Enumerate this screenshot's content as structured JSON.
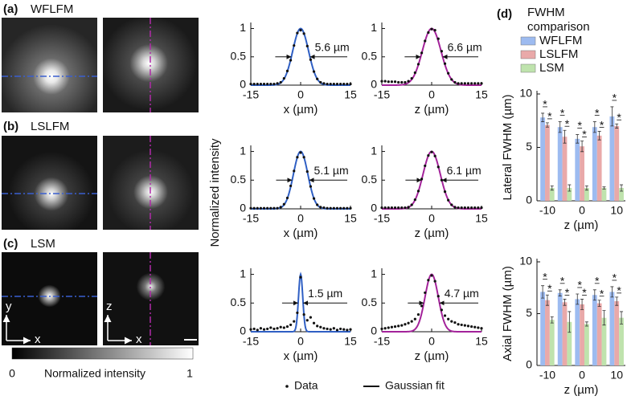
{
  "panels": [
    {
      "letter": "(a)",
      "name": "WFLFM"
    },
    {
      "letter": "(b)",
      "name": "LSLFM"
    },
    {
      "letter": "(c)",
      "name": "LSM"
    }
  ],
  "image_axes": {
    "left": [
      "y",
      "x"
    ],
    "right": [
      "z",
      "x"
    ]
  },
  "colorbar": {
    "min_label": "0",
    "title": "Normalized intensity",
    "max_label": "1"
  },
  "profile_ylabel": "Normalized intensity",
  "profile_legend": [
    "Data",
    "Gaussian fit"
  ],
  "panel_d": {
    "letter": "(d)",
    "title": [
      "FWHM",
      "comparison"
    ]
  },
  "chart_data": [
    {
      "type": "profile",
      "xlabel": "x (µm)",
      "color": "#2f5fc4",
      "xlim": [
        -15,
        15
      ],
      "xticks": [
        -15,
        0,
        15
      ],
      "ylim": [
        0,
        1.05
      ],
      "yticks": [
        0,
        0.5,
        1
      ],
      "fwhm": {
        "value": 5.6,
        "label": "5.6 µm"
      },
      "fit_peak": 1,
      "x": [
        -15,
        -14,
        -13,
        -12,
        -11,
        -10,
        -9,
        -8,
        -7,
        -6,
        -5,
        -4,
        -3,
        -2,
        -1,
        0,
        1,
        2,
        3,
        4,
        5,
        6,
        7,
        8,
        9,
        10,
        11,
        12,
        13,
        14,
        15
      ],
      "values": [
        0.02,
        0.02,
        0.02,
        0.02,
        0.02,
        0.02,
        0.02,
        0.02,
        0.03,
        0.05,
        0.12,
        0.25,
        0.44,
        0.7,
        0.92,
        0.97,
        0.91,
        0.69,
        0.45,
        0.24,
        0.11,
        0.05,
        0.03,
        0.02,
        0.02,
        0.02,
        0.02,
        0.02,
        0.02,
        0.02,
        0.02
      ]
    },
    {
      "type": "profile",
      "xlabel": "z (µm)",
      "color": "#a3239a",
      "xlim": [
        -15,
        15
      ],
      "xticks": [
        -15,
        0,
        15
      ],
      "ylim": [
        0,
        1.05
      ],
      "yticks": [
        0,
        0.5,
        1
      ],
      "fwhm": {
        "value": 6.6,
        "label": "6.6 µm"
      },
      "fit_peak": 1,
      "x": [
        -15,
        -14,
        -13,
        -12,
        -11,
        -10,
        -9,
        -8,
        -7,
        -6,
        -5,
        -4,
        -3,
        -2,
        -1,
        0,
        1,
        2,
        3,
        4,
        5,
        6,
        7,
        8,
        9,
        10,
        11,
        12,
        13,
        14,
        15
      ],
      "values": [
        0.07,
        0.07,
        0.06,
        0.06,
        0.06,
        0.05,
        0.05,
        0.05,
        0.07,
        0.12,
        0.22,
        0.37,
        0.57,
        0.78,
        0.93,
        0.99,
        0.97,
        0.82,
        0.6,
        0.38,
        0.21,
        0.1,
        0.05,
        0.03,
        0.03,
        0.03,
        0.03,
        0.03,
        0.03,
        0.03,
        0.03
      ]
    },
    {
      "type": "profile",
      "xlabel": "x (µm)",
      "color": "#2f5fc4",
      "xlim": [
        -15,
        15
      ],
      "xticks": [
        -15,
        0,
        15
      ],
      "ylim": [
        0,
        1.05
      ],
      "yticks": [
        0,
        0.5,
        1
      ],
      "fwhm": {
        "value": 5.1,
        "label": "5.1 µm"
      },
      "fit_peak": 1,
      "x": [
        -15,
        -14,
        -13,
        -12,
        -11,
        -10,
        -9,
        -8,
        -7,
        -6,
        -5,
        -4,
        -3,
        -2,
        -1,
        0,
        1,
        2,
        3,
        4,
        5,
        6,
        7,
        8,
        9,
        10,
        11,
        12,
        13,
        14,
        15
      ],
      "values": [
        0.01,
        0.01,
        0.01,
        0.01,
        0.01,
        0.01,
        0.01,
        0.01,
        0.01,
        0.03,
        0.08,
        0.19,
        0.4,
        0.66,
        0.9,
        0.98,
        0.9,
        0.65,
        0.39,
        0.18,
        0.07,
        0.03,
        0.02,
        0.01,
        0.01,
        0.01,
        0.01,
        0.01,
        0.01,
        0.01,
        0.01
      ]
    },
    {
      "type": "profile",
      "xlabel": "z (µm)",
      "color": "#a3239a",
      "xlim": [
        -15,
        15
      ],
      "xticks": [
        -15,
        0,
        15
      ],
      "ylim": [
        0,
        1.05
      ],
      "yticks": [
        0,
        0.5,
        1
      ],
      "fwhm": {
        "value": 6.1,
        "label": "6.1 µm"
      },
      "fit_peak": 1,
      "x": [
        -15,
        -14,
        -13,
        -12,
        -11,
        -10,
        -9,
        -8,
        -7,
        -6,
        -5,
        -4,
        -3,
        -2,
        -1,
        0,
        1,
        2,
        3,
        4,
        5,
        6,
        7,
        8,
        9,
        10,
        11,
        12,
        13,
        14,
        15
      ],
      "values": [
        0.02,
        0.02,
        0.02,
        0.02,
        0.02,
        0.02,
        0.02,
        0.02,
        0.03,
        0.07,
        0.16,
        0.31,
        0.52,
        0.75,
        0.93,
        0.99,
        0.92,
        0.73,
        0.5,
        0.3,
        0.15,
        0.07,
        0.03,
        0.02,
        0.02,
        0.02,
        0.02,
        0.02,
        0.02,
        0.02,
        0.02
      ]
    },
    {
      "type": "profile",
      "xlabel": "x (µm)",
      "color": "#2f5fc4",
      "xlim": [
        -15,
        15
      ],
      "xticks": [
        -15,
        0,
        15
      ],
      "ylim": [
        0,
        1.05
      ],
      "yticks": [
        0,
        0.5,
        1
      ],
      "fwhm": {
        "value": 1.5,
        "label": "1.5 µm"
      },
      "fit_peak": 1,
      "x": [
        -15,
        -14,
        -13,
        -12,
        -11,
        -10,
        -9,
        -8,
        -7,
        -6,
        -5,
        -4,
        -3,
        -2,
        -1,
        0,
        1,
        2,
        3,
        4,
        5,
        6,
        7,
        8,
        9,
        10,
        11,
        12,
        13,
        14,
        15
      ],
      "values": [
        0.04,
        0.05,
        0.03,
        0.06,
        0.04,
        0.05,
        0.07,
        0.05,
        0.06,
        0.08,
        0.07,
        0.09,
        0.12,
        0.18,
        0.33,
        0.95,
        0.3,
        0.2,
        0.25,
        0.15,
        0.1,
        0.08,
        0.06,
        0.05,
        0.04,
        0.06,
        0.03,
        0.05,
        0.04,
        0.03,
        0.04
      ]
    },
    {
      "type": "profile",
      "xlabel": "z (µm)",
      "color": "#a3239a",
      "xlim": [
        -15,
        15
      ],
      "xticks": [
        -15,
        0,
        15
      ],
      "ylim": [
        0,
        1.05
      ],
      "yticks": [
        0,
        0.5,
        1
      ],
      "fwhm": {
        "value": 4.7,
        "label": "4.7 µm"
      },
      "fit_peak": 1,
      "x": [
        -15,
        -14,
        -13,
        -12,
        -11,
        -10,
        -9,
        -8,
        -7,
        -6,
        -5,
        -4,
        -3,
        -2,
        -1,
        0,
        1,
        2,
        3,
        4,
        5,
        6,
        7,
        8,
        9,
        10,
        11,
        12,
        13,
        14,
        15
      ],
      "values": [
        0.05,
        0.06,
        0.07,
        0.08,
        0.09,
        0.1,
        0.11,
        0.13,
        0.15,
        0.18,
        0.22,
        0.3,
        0.45,
        0.68,
        0.9,
        0.98,
        0.88,
        0.62,
        0.38,
        0.28,
        0.22,
        0.18,
        0.16,
        0.13,
        0.12,
        0.11,
        0.1,
        0.09,
        0.08,
        0.07,
        0.06
      ]
    },
    {
      "type": "bar",
      "ylabel": "Lateral FWHM (µm)",
      "xlabel": "z (µm)",
      "significance": "*",
      "x": [
        -10,
        -5,
        0,
        5,
        10
      ],
      "xlim": [
        -13,
        12.5
      ],
      "xticks": [
        -10,
        0,
        10
      ],
      "ylim": [
        0,
        10
      ],
      "yticks": [
        0,
        5,
        10
      ],
      "series": [
        {
          "name": "WFLFM",
          "color": "#9dbbf0",
          "values": [
            7.8,
            6.9,
            5.8,
            6.9,
            7.9
          ],
          "errors": [
            0.4,
            0.5,
            0.4,
            0.5,
            0.9
          ]
        },
        {
          "name": "LSLFM",
          "color": "#e9a9a9",
          "values": [
            7.1,
            6.0,
            5.1,
            6.1,
            7.0
          ],
          "errors": [
            0.2,
            0.6,
            0.5,
            0.4,
            0.2
          ]
        },
        {
          "name": "LSM",
          "color": "#bfe3ad",
          "values": [
            1.2,
            1.2,
            1.2,
            1.2,
            1.2
          ],
          "errors": [
            0.2,
            0.3,
            0.2,
            0.1,
            0.3
          ]
        }
      ]
    },
    {
      "type": "bar",
      "ylabel": "Axial FWHM (µm)",
      "xlabel": "z (µm)",
      "significance": "*",
      "x": [
        -10,
        -5,
        0,
        5,
        10
      ],
      "xlim": [
        -13,
        12.5
      ],
      "xticks": [
        -10,
        0,
        10
      ],
      "ylim": [
        0,
        10
      ],
      "yticks": [
        0,
        5,
        10
      ],
      "series": [
        {
          "name": "WFLFM",
          "color": "#9dbbf0",
          "values": [
            7.1,
            7.0,
            6.4,
            6.8,
            7.1
          ],
          "errors": [
            0.6,
            0.3,
            0.5,
            0.5,
            0.5
          ]
        },
        {
          "name": "LSLFM",
          "color": "#e9a9a9",
          "values": [
            6.3,
            6.1,
            5.9,
            6.0,
            6.2
          ],
          "errors": [
            0.5,
            0.3,
            0.5,
            0.3,
            0.4
          ]
        },
        {
          "name": "LSM",
          "color": "#bfe3ad",
          "values": [
            4.4,
            4.2,
            4.0,
            4.6,
            4.6
          ],
          "errors": [
            0.3,
            1.0,
            0.2,
            0.7,
            0.6
          ]
        }
      ]
    }
  ]
}
